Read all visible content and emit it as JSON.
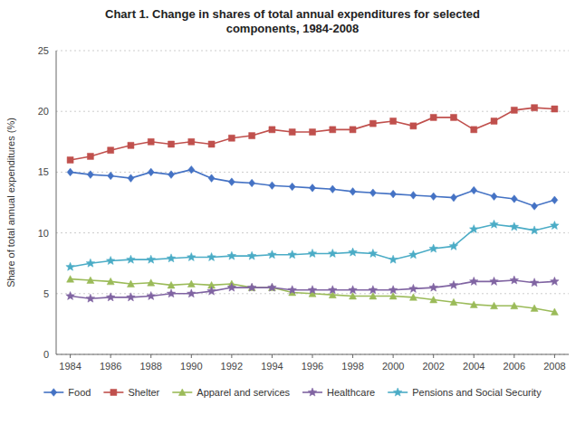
{
  "chart_data": {
    "type": "line",
    "title": "Chart 1. Change in shares of total annual expenditures for selected\ncomponents, 1984-2008",
    "ylabel": "Share of total annual expenditures (%)",
    "x": [
      1984,
      1985,
      1986,
      1987,
      1988,
      1989,
      1990,
      1991,
      1992,
      1993,
      1994,
      1995,
      1996,
      1997,
      1998,
      1999,
      2000,
      2001,
      2002,
      2003,
      2004,
      2005,
      2006,
      2007,
      2008
    ],
    "xlim": [
      1983.3,
      2008.7
    ],
    "xticks": [
      1984,
      1986,
      1988,
      1990,
      1992,
      1994,
      1996,
      1998,
      2000,
      2002,
      2004,
      2006,
      2008
    ],
    "ylim": [
      0,
      25
    ],
    "yticks": [
      0,
      5,
      10,
      15,
      20,
      25
    ],
    "grid": true,
    "legend": "bottom",
    "series": [
      {
        "name": "Food",
        "color": "#4472C4",
        "marker": "diamond",
        "values": [
          15.0,
          14.8,
          14.7,
          14.5,
          15.0,
          14.8,
          15.2,
          14.5,
          14.2,
          14.1,
          13.9,
          13.8,
          13.7,
          13.6,
          13.4,
          13.3,
          13.2,
          13.1,
          13.0,
          12.9,
          13.5,
          13.0,
          12.8,
          12.2,
          12.7
        ]
      },
      {
        "name": "Shelter",
        "color": "#C0504D",
        "marker": "square",
        "values": [
          16.0,
          16.3,
          16.8,
          17.2,
          17.5,
          17.3,
          17.5,
          17.3,
          17.8,
          18.0,
          18.5,
          18.3,
          18.3,
          18.5,
          18.5,
          19.0,
          19.2,
          18.8,
          19.5,
          19.5,
          18.5,
          19.2,
          20.1,
          20.3,
          20.2
        ]
      },
      {
        "name": "Apparel and services",
        "color": "#9BBB59",
        "marker": "triangle",
        "values": [
          6.2,
          6.1,
          6.0,
          5.8,
          5.9,
          5.7,
          5.8,
          5.7,
          5.8,
          5.5,
          5.5,
          5.1,
          5.0,
          4.9,
          4.8,
          4.8,
          4.8,
          4.7,
          4.5,
          4.3,
          4.1,
          4.0,
          4.0,
          3.8,
          3.5
        ]
      },
      {
        "name": "Healthcare",
        "color": "#8064A2",
        "marker": "star",
        "values": [
          4.8,
          4.6,
          4.7,
          4.7,
          4.8,
          5.0,
          5.0,
          5.2,
          5.5,
          5.5,
          5.5,
          5.3,
          5.3,
          5.3,
          5.3,
          5.3,
          5.3,
          5.4,
          5.5,
          5.7,
          6.0,
          6.0,
          6.1,
          5.9,
          6.0
        ]
      },
      {
        "name": "Pensions and Social Security",
        "color": "#4BACC6",
        "marker": "star",
        "values": [
          7.2,
          7.5,
          7.7,
          7.8,
          7.8,
          7.9,
          8.0,
          8.0,
          8.1,
          8.1,
          8.2,
          8.2,
          8.3,
          8.3,
          8.4,
          8.3,
          7.8,
          8.2,
          8.7,
          8.9,
          10.3,
          10.7,
          10.5,
          10.2,
          10.6
        ]
      }
    ]
  }
}
